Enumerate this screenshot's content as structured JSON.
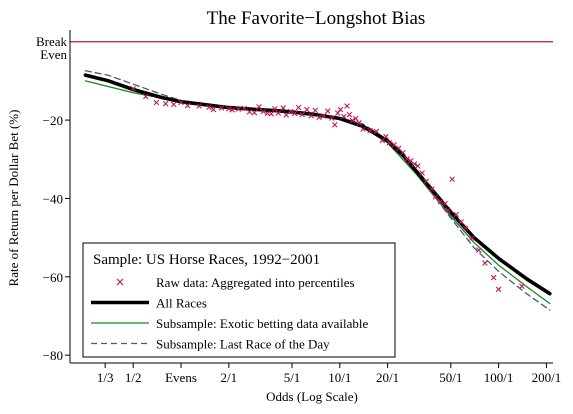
{
  "chart_data": {
    "type": "scatter",
    "title": "The Favorite−Longshot Bias",
    "xlabel": "Odds (Log Scale)",
    "ylabel": "Rate of Return per Dollar Bet (%)",
    "x_scale": "log",
    "x_ticks": [
      {
        "value": 0.333,
        "label": "1/3"
      },
      {
        "value": 0.5,
        "label": "1/2"
      },
      {
        "value": 1,
        "label": "Evens"
      },
      {
        "value": 2,
        "label": "2/1"
      },
      {
        "value": 5,
        "label": "5/1"
      },
      {
        "value": 10,
        "label": "10/1"
      },
      {
        "value": 20,
        "label": "20/1"
      },
      {
        "value": 50,
        "label": "50/1"
      },
      {
        "value": 100,
        "label": "100/1"
      },
      {
        "value": 200,
        "label": "200/1"
      }
    ],
    "xlim": [
      0.2,
      220
    ],
    "ylim": [
      -82,
      3
    ],
    "y_ticks": [
      {
        "value": -20,
        "label": "−20"
      },
      {
        "value": -40,
        "label": "−40"
      },
      {
        "value": -60,
        "label": "−60"
      },
      {
        "value": -80,
        "label": "−80"
      }
    ],
    "reference_line": {
      "y": 0,
      "label_line1": "Break",
      "label_line2": "Even",
      "color": "#b0174e"
    },
    "legend": {
      "title": "Sample: US Horse Races, 1992−2001",
      "placement": "bottom-left",
      "entries": [
        {
          "label": "Raw data: Aggregated into percentiles",
          "symbol": "x",
          "color": "#c2185b"
        },
        {
          "label": "All Races",
          "symbol": "thick-line",
          "color": "#000000"
        },
        {
          "label": "Subsample: Exotic betting data available",
          "symbol": "line",
          "color": "#1a8a1a"
        },
        {
          "label": "Subsample: Last Race of the Day",
          "symbol": "dashed-line",
          "color": "#4a5a78"
        }
      ]
    },
    "series": [
      {
        "name": "All Races",
        "kind": "line",
        "color": "#000000",
        "dash": "",
        "points": [
          [
            0.25,
            -8.5
          ],
          [
            0.35,
            -10
          ],
          [
            0.5,
            -12.2
          ],
          [
            0.75,
            -14.2
          ],
          [
            1,
            -15.3
          ],
          [
            1.5,
            -16.2
          ],
          [
            2,
            -16.8
          ],
          [
            3,
            -17.3
          ],
          [
            4,
            -17.6
          ],
          [
            5,
            -17.9
          ],
          [
            7,
            -18.6
          ],
          [
            10,
            -19.6
          ],
          [
            14,
            -21.6
          ],
          [
            20,
            -25.3
          ],
          [
            25,
            -29
          ],
          [
            30,
            -32.8
          ],
          [
            40,
            -38.8
          ],
          [
            50,
            -43.5
          ],
          [
            70,
            -50
          ],
          [
            100,
            -55.3
          ],
          [
            150,
            -60.5
          ],
          [
            210,
            -64.3
          ]
        ]
      },
      {
        "name": "Subsample: Exotic betting data available",
        "kind": "line",
        "color": "#1a8a1a",
        "dash": "",
        "points": [
          [
            0.25,
            -10
          ],
          [
            0.5,
            -13
          ],
          [
            1,
            -15.3
          ],
          [
            2,
            -16.7
          ],
          [
            3,
            -17.3
          ],
          [
            5,
            -17.9
          ],
          [
            7,
            -18.6
          ],
          [
            10,
            -19.6
          ],
          [
            14,
            -21.8
          ],
          [
            20,
            -25.8
          ],
          [
            30,
            -33.6
          ],
          [
            40,
            -39.8
          ],
          [
            50,
            -44.5
          ],
          [
            70,
            -51.3
          ],
          [
            100,
            -57
          ],
          [
            150,
            -62.5
          ],
          [
            210,
            -66.8
          ]
        ]
      },
      {
        "name": "Subsample: Last Race of the Day",
        "kind": "line",
        "color": "#4a5a78",
        "dash": "6,4",
        "points": [
          [
            0.25,
            -7.4
          ],
          [
            0.35,
            -8.6
          ],
          [
            0.5,
            -10.8
          ],
          [
            0.75,
            -13.4
          ],
          [
            1,
            -15
          ],
          [
            1.5,
            -16.3
          ],
          [
            2,
            -16.9
          ],
          [
            3,
            -17.5
          ],
          [
            5,
            -18
          ],
          [
            7,
            -18.6
          ],
          [
            10,
            -19.3
          ],
          [
            14,
            -21
          ],
          [
            20,
            -25
          ],
          [
            30,
            -33
          ],
          [
            40,
            -39.8
          ],
          [
            50,
            -45
          ],
          [
            70,
            -52.6
          ],
          [
            100,
            -58.6
          ],
          [
            150,
            -64.3
          ],
          [
            210,
            -68.5
          ]
        ]
      },
      {
        "name": "Raw data: Aggregated into percentiles",
        "kind": "scatter",
        "color": "#c2185b",
        "marker": "x",
        "points": [
          [
            0.5,
            -12
          ],
          [
            0.6,
            -14
          ],
          [
            0.7,
            -15.5
          ],
          [
            0.8,
            -15.8
          ],
          [
            0.9,
            -16
          ],
          [
            1,
            -15.5
          ],
          [
            1.1,
            -16.3
          ],
          [
            1.3,
            -16.4
          ],
          [
            1.5,
            -16.7
          ],
          [
            1.6,
            -17.3
          ],
          [
            1.8,
            -16.9
          ],
          [
            2,
            -17.1
          ],
          [
            2.1,
            -17.4
          ],
          [
            2.3,
            -17.2
          ],
          [
            2.5,
            -17
          ],
          [
            2.7,
            -17.9
          ],
          [
            2.9,
            -18.1
          ],
          [
            3.1,
            -16.6
          ],
          [
            3.3,
            -17.8
          ],
          [
            3.5,
            -18.3
          ],
          [
            3.7,
            -18.4
          ],
          [
            3.9,
            -17.1
          ],
          [
            4.1,
            -18.2
          ],
          [
            4.4,
            -16.9
          ],
          [
            4.6,
            -18.7
          ],
          [
            4.9,
            -17.8
          ],
          [
            5.2,
            -18.3
          ],
          [
            5.5,
            -16.8
          ],
          [
            5.8,
            -18.6
          ],
          [
            6.2,
            -17.3
          ],
          [
            6.6,
            -18.9
          ],
          [
            7,
            -17.5
          ],
          [
            7.4,
            -19.3
          ],
          [
            7.9,
            -18.9
          ],
          [
            8.4,
            -17.7
          ],
          [
            8.9,
            -19.5
          ],
          [
            9.3,
            -21.2
          ],
          [
            9.7,
            -18.2
          ],
          [
            10.1,
            -17.3
          ],
          [
            10.6,
            -19.1
          ],
          [
            11.1,
            -16.4
          ],
          [
            11.5,
            -18.6
          ],
          [
            12,
            -20.1
          ],
          [
            12.6,
            -19.6
          ],
          [
            13.2,
            -20.7
          ],
          [
            14,
            -22.3
          ],
          [
            15.5,
            -22.7
          ],
          [
            17,
            -22.9
          ],
          [
            18.5,
            -25.2
          ],
          [
            19.5,
            -24.2
          ],
          [
            20.5,
            -25.8
          ],
          [
            22,
            -26.3
          ],
          [
            23.5,
            -27.2
          ],
          [
            25,
            -28.3
          ],
          [
            26.5,
            -29.9
          ],
          [
            28,
            -30.4
          ],
          [
            29.5,
            -31.2
          ],
          [
            31,
            -31.7
          ],
          [
            33,
            -33.5
          ],
          [
            35,
            -35.6
          ],
          [
            38,
            -37.6
          ],
          [
            40,
            -39.6
          ],
          [
            43,
            -40.8
          ],
          [
            46,
            -41.3
          ],
          [
            48,
            -43
          ],
          [
            51,
            -35.1
          ],
          [
            54,
            -44.1
          ],
          [
            58,
            -46
          ],
          [
            62,
            -47.6
          ],
          [
            68,
            -50.1
          ],
          [
            75,
            -53.2
          ],
          [
            82,
            -56.5
          ],
          [
            93,
            -60.2
          ],
          [
            100,
            -63.2
          ],
          [
            140,
            -62.4
          ]
        ]
      }
    ]
  }
}
